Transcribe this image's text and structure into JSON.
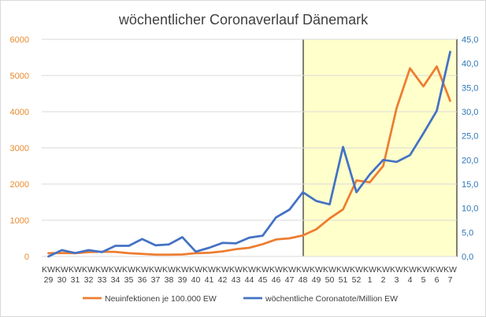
{
  "chart_data": {
    "type": "line",
    "title": "wöchentlicher Coronaverlauf Dänemark",
    "xlabel": "",
    "ylabel": "",
    "categories": [
      [
        "KW",
        "29"
      ],
      [
        "KW",
        "30"
      ],
      [
        "KW",
        "31"
      ],
      [
        "KW",
        "32"
      ],
      [
        "KW",
        "33"
      ],
      [
        "KW",
        "34"
      ],
      [
        "KW",
        "35"
      ],
      [
        "KW",
        "36"
      ],
      [
        "KW",
        "37"
      ],
      [
        "KW",
        "38"
      ],
      [
        "KW",
        "39"
      ],
      [
        "KW",
        "40"
      ],
      [
        "KW",
        "41"
      ],
      [
        "KW",
        "42"
      ],
      [
        "KW",
        "43"
      ],
      [
        "KW",
        "44"
      ],
      [
        "KW",
        "45"
      ],
      [
        "KW",
        "46"
      ],
      [
        "KW",
        "47"
      ],
      [
        "KW",
        "48"
      ],
      [
        "KW",
        "49"
      ],
      [
        "KW",
        "50"
      ],
      [
        "KW",
        "51"
      ],
      [
        "KW",
        "52"
      ],
      [
        "KW",
        "1"
      ],
      [
        "KW",
        "2"
      ],
      [
        "KW",
        "3"
      ],
      [
        "KW",
        "4"
      ],
      [
        "KW",
        "5"
      ],
      [
        "KW",
        "6"
      ],
      [
        "KW",
        "7"
      ]
    ],
    "y_left": {
      "min": 0,
      "max": 6000,
      "step": 1000,
      "tick_labels": [
        "0",
        "1000",
        "2000",
        "3000",
        "4000",
        "5000",
        "6000"
      ],
      "color": "#ED7D31"
    },
    "y_right": {
      "min": 0,
      "max": 45,
      "step": 5,
      "tick_labels": [
        "0,0",
        "5,0",
        "10,0",
        "15,0",
        "20,0",
        "25,0",
        "30,0",
        "35,0",
        "40,0",
        "45,0"
      ],
      "color": "#4472C4"
    },
    "series": [
      {
        "name": "Neuinfektionen je 100.000 EW",
        "axis": "left",
        "color": "#ED7D31",
        "values": [
          90,
          95,
          90,
          120,
          130,
          125,
          90,
          70,
          50,
          50,
          55,
          90,
          100,
          140,
          200,
          240,
          340,
          470,
          500,
          580,
          750,
          1050,
          1300,
          2100,
          2050,
          2500,
          4100,
          5200,
          4700,
          5250,
          4300
        ]
      },
      {
        "name": "wöchentliche Coronatote/Million EW",
        "axis": "right",
        "color": "#4472C4",
        "values": [
          0.0,
          1.3,
          0.7,
          1.3,
          0.9,
          2.2,
          2.2,
          3.6,
          2.3,
          2.5,
          4.0,
          1.0,
          1.8,
          2.8,
          2.7,
          3.9,
          4.3,
          8.1,
          9.7,
          13.3,
          11.5,
          10.8,
          22.7,
          13.3,
          17.0,
          20.0,
          19.6,
          21.0,
          25.5,
          30.2,
          42.4
        ]
      }
    ],
    "highlight": {
      "from_category": "KW 49",
      "to_category": "KW 7",
      "fill": "#FFFFCC",
      "border": "#000000"
    },
    "grid": true,
    "legend_position": "bottom"
  }
}
